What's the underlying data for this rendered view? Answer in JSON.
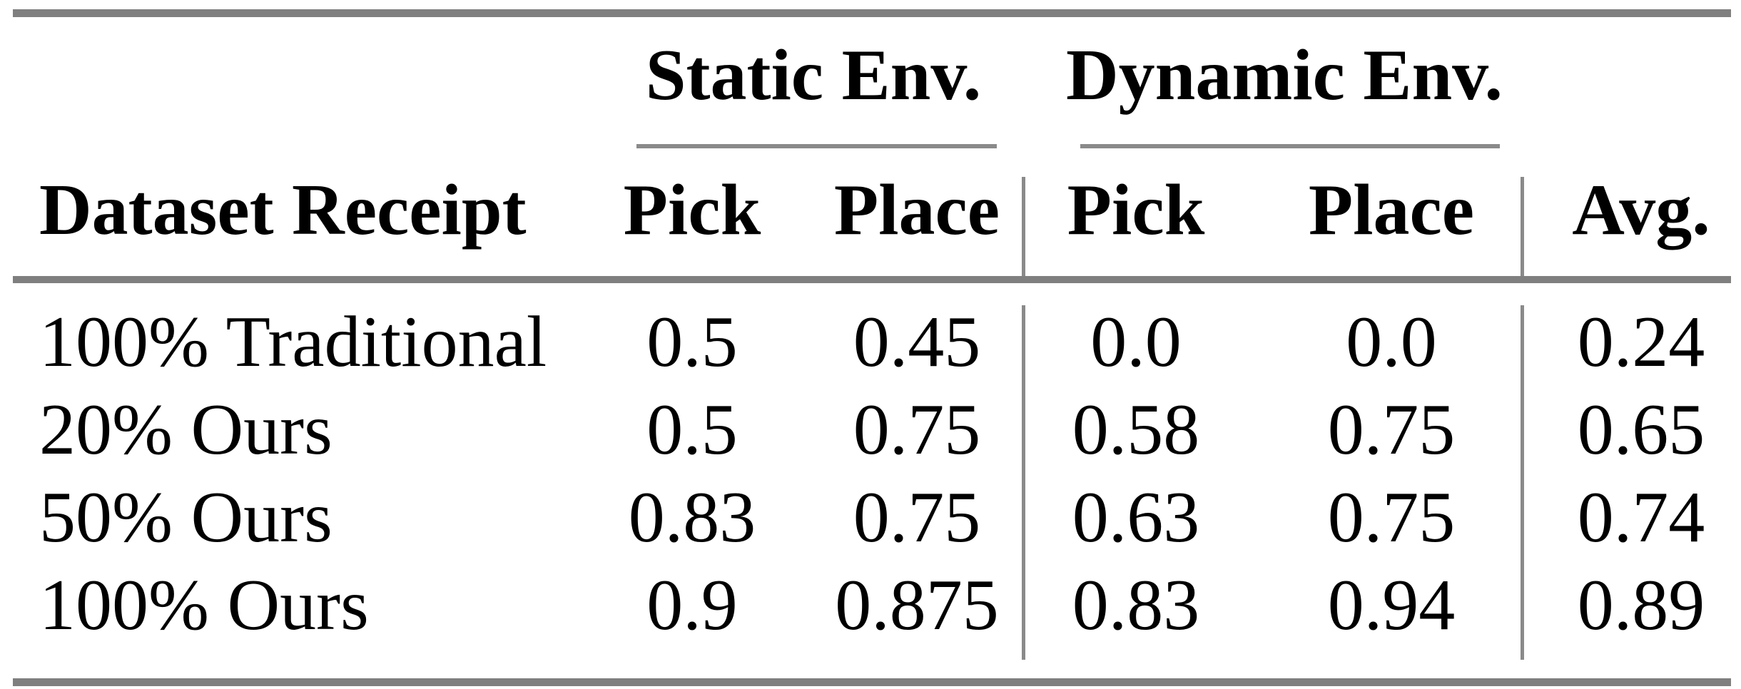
{
  "table": {
    "group_headers": [
      {
        "label": "Static Env."
      },
      {
        "label": "Dynamic Env."
      }
    ],
    "column_headers": {
      "row_label": "Dataset Receipt",
      "static_pick": "Pick",
      "static_place": "Place",
      "dynamic_pick": "Pick",
      "dynamic_place": "Place",
      "avg": "Avg."
    },
    "rows": [
      {
        "label": "100% Traditional",
        "static_pick": "0.5",
        "static_place": "0.45",
        "dynamic_pick": "0.0",
        "dynamic_place": "0.0",
        "avg": "0.24"
      },
      {
        "label": "20% Ours",
        "static_pick": "0.5",
        "static_place": "0.75",
        "dynamic_pick": "0.58",
        "dynamic_place": "0.75",
        "avg": "0.65"
      },
      {
        "label": "50% Ours",
        "static_pick": "0.83",
        "static_place": "0.75",
        "dynamic_pick": "0.63",
        "dynamic_place": "0.75",
        "avg": "0.74"
      },
      {
        "label": "100% Ours",
        "static_pick": "0.9",
        "static_place": "0.875",
        "dynamic_pick": "0.83",
        "dynamic_place": "0.94",
        "avg": "0.89"
      }
    ]
  },
  "colors": {
    "background": "#ffffff",
    "text": "#000000",
    "rule": "#7f7f7f",
    "rule_thin": "#8a8a8a"
  },
  "chart_data": {
    "type": "table",
    "columns": [
      "Dataset Receipt",
      "Static Env. Pick",
      "Static Env. Place",
      "Dynamic Env. Pick",
      "Dynamic Env. Place",
      "Avg."
    ],
    "rows": [
      [
        "100% Traditional",
        0.5,
        0.45,
        0.0,
        0.0,
        0.24
      ],
      [
        "20% Ours",
        0.5,
        0.75,
        0.58,
        0.75,
        0.65
      ],
      [
        "50% Ours",
        0.83,
        0.75,
        0.63,
        0.75,
        0.74
      ],
      [
        "100% Ours",
        0.9,
        0.875,
        0.83,
        0.94,
        0.89
      ]
    ]
  }
}
